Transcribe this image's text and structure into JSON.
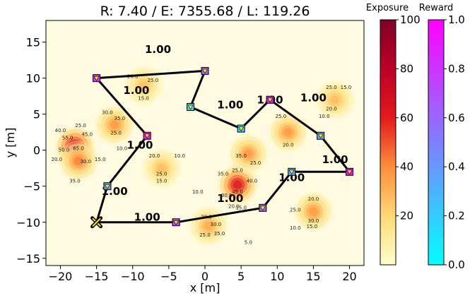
{
  "chart_data": {
    "type": "scatter",
    "title": "R: 7.40 / E: 7355.68 / L: 119.26",
    "xlabel": "x [m]",
    "ylabel": "y [m]",
    "xlim": [
      -22,
      22
    ],
    "ylim": [
      -16,
      18
    ],
    "xticks": [
      -20,
      -15,
      -10,
      -5,
      0,
      5,
      10,
      15,
      20
    ],
    "yticks": [
      -15,
      -10,
      -5,
      0,
      5,
      10,
      15
    ],
    "grid": false,
    "exposure_sources": [
      {
        "x": -18,
        "y": 0.5,
        "peak": 75
      },
      {
        "x": -17.5,
        "y": -1.5,
        "peak": 45
      },
      {
        "x": -12.5,
        "y": 3.5,
        "peak": 40
      },
      {
        "x": -8.5,
        "y": 9,
        "peak": 28
      },
      {
        "x": -6,
        "y": -2.5,
        "peak": 30
      },
      {
        "x": 4.5,
        "y": -4.8,
        "peak": 70
      },
      {
        "x": 6,
        "y": -0.5,
        "peak": 40
      },
      {
        "x": 11.5,
        "y": 2.5,
        "peak": 40
      },
      {
        "x": 18,
        "y": 7,
        "peak": 30
      },
      {
        "x": 15,
        "y": -8.5,
        "peak": 40
      },
      {
        "x": 0.5,
        "y": -10.5,
        "peak": 35
      }
    ],
    "contour_labels": [
      {
        "text": "20.0",
        "x": -10,
        "y": 10
      },
      {
        "text": "25.0",
        "x": -7.2,
        "y": 9.5
      },
      {
        "text": "15.0",
        "x": -8.5,
        "y": 7
      },
      {
        "text": "30.0",
        "x": -13.5,
        "y": 5
      },
      {
        "text": "35.0",
        "x": -11.8,
        "y": 4.2
      },
      {
        "text": "25.0",
        "x": -12.3,
        "y": 2.2
      },
      {
        "text": "25.0",
        "x": -17.2,
        "y": 3.2
      },
      {
        "text": "40.0",
        "x": -20,
        "y": 2.5
      },
      {
        "text": "45.0",
        "x": -16.3,
        "y": 2
      },
      {
        "text": "55.0",
        "x": -19,
        "y": 1.5
      },
      {
        "text": "65.0",
        "x": -17.5,
        "y": 0
      },
      {
        "text": "50.0",
        "x": -19.5,
        "y": -0.2
      },
      {
        "text": "15.0",
        "x": -14.5,
        "y": -1.5
      },
      {
        "text": "30.0",
        "x": -16.5,
        "y": -1.8
      },
      {
        "text": "20.0",
        "x": -20.5,
        "y": -1.5
      },
      {
        "text": "35.0",
        "x": -18,
        "y": -4.5
      },
      {
        "text": "10.0",
        "x": -11.5,
        "y": 0
      },
      {
        "text": "20.0",
        "x": -7,
        "y": -1
      },
      {
        "text": "10.0",
        "x": -3.5,
        "y": -1
      },
      {
        "text": "25.0",
        "x": -6,
        "y": -3.5
      },
      {
        "text": "15.0",
        "x": -6,
        "y": -4.5
      },
      {
        "text": "10.0",
        "x": -1,
        "y": -6
      },
      {
        "text": "35.0",
        "x": 2.5,
        "y": -3.5
      },
      {
        "text": "25.0",
        "x": 4.5,
        "y": -3
      },
      {
        "text": "40.0",
        "x": 6.5,
        "y": -4.5
      },
      {
        "text": "45.0",
        "x": 4.5,
        "y": -6
      },
      {
        "text": "30.0",
        "x": 3,
        "y": -6.5
      },
      {
        "text": "20.0",
        "x": 4,
        "y": -8
      },
      {
        "text": "15.0",
        "x": 5,
        "y": -8.2
      },
      {
        "text": "35.0",
        "x": 5,
        "y": -1
      },
      {
        "text": "25.0",
        "x": 7,
        "y": -2
      },
      {
        "text": "20.0",
        "x": 0.2,
        "y": -9.5
      },
      {
        "text": "30.0",
        "x": 1.5,
        "y": -10.5
      },
      {
        "text": "25.0",
        "x": 0,
        "y": -12
      },
      {
        "text": "35.0",
        "x": 2,
        "y": -11.8
      },
      {
        "text": "5.0",
        "x": 6,
        "y": -13
      },
      {
        "text": "25.0",
        "x": 10.5,
        "y": 4.5
      },
      {
        "text": "20.0",
        "x": 11.5,
        "y": 0.5
      },
      {
        "text": "25.0",
        "x": 17.5,
        "y": 8.5
      },
      {
        "text": "15.0",
        "x": 19.5,
        "y": 8.5
      },
      {
        "text": "20.0",
        "x": 17.5,
        "y": 5.5
      },
      {
        "text": "10.0",
        "x": 16.5,
        "y": 4.5
      },
      {
        "text": "20.0",
        "x": 15,
        "y": -7
      },
      {
        "text": "25.0",
        "x": 12.5,
        "y": -8.5
      },
      {
        "text": "30.0",
        "x": 15,
        "y": -10
      },
      {
        "text": "10.0",
        "x": 12.5,
        "y": -11
      },
      {
        "text": "15.0",
        "x": 14.8,
        "y": -10.8
      }
    ],
    "path": [
      {
        "x": -15,
        "y": -10
      },
      {
        "x": -13.5,
        "y": -5
      },
      {
        "x": -8,
        "y": 2
      },
      {
        "x": -15,
        "y": 10
      },
      {
        "x": 0,
        "y": 11
      },
      {
        "x": -2,
        "y": 6
      },
      {
        "x": 5,
        "y": 3
      },
      {
        "x": 9,
        "y": 7
      },
      {
        "x": 16,
        "y": 2
      },
      {
        "x": 20,
        "y": -3
      },
      {
        "x": 12,
        "y": -3
      },
      {
        "x": 8,
        "y": -8
      },
      {
        "x": -4,
        "y": -10
      },
      {
        "x": -15,
        "y": -10
      }
    ],
    "segment_labels": [
      {
        "text": "1.00",
        "x": -12.5,
        "y": -6.2
      },
      {
        "text": "1.00",
        "x": -9,
        "y": 0.2
      },
      {
        "text": "1.00",
        "x": -9.5,
        "y": 7.8
      },
      {
        "text": "1.00",
        "x": -6.5,
        "y": 13.5
      },
      {
        "text": "1.00",
        "x": 3.5,
        "y": 5.8
      },
      {
        "text": "1.00",
        "x": 9,
        "y": 6.5
      },
      {
        "text": "1.00",
        "x": 15,
        "y": 6.8
      },
      {
        "text": "1.00",
        "x": 18,
        "y": -1.8
      },
      {
        "text": "1.00",
        "x": 12,
        "y": -4.3
      },
      {
        "text": "1.00",
        "x": 3.5,
        "y": -7.2
      },
      {
        "text": "1.00",
        "x": -8,
        "y": -9.8
      }
    ],
    "waypoints": [
      {
        "x": -13.5,
        "y": -5,
        "reward": 0.4
      },
      {
        "x": -8,
        "y": 2,
        "reward": 0.9
      },
      {
        "x": -15,
        "y": 10,
        "reward": 0.8
      },
      {
        "x": 0,
        "y": 11,
        "reward": 0.6
      },
      {
        "x": -2,
        "y": 6,
        "reward": 0.15
      },
      {
        "x": 5,
        "y": 3,
        "reward": 0.2
      },
      {
        "x": 9,
        "y": 7,
        "reward": 0.9
      },
      {
        "x": 16,
        "y": 2,
        "reward": 0.35
      },
      {
        "x": 20,
        "y": -3,
        "reward": 0.95
      },
      {
        "x": 12,
        "y": -3,
        "reward": 0.3
      },
      {
        "x": 8,
        "y": -8,
        "reward": 0.6
      },
      {
        "x": -4,
        "y": -10,
        "reward": 0.75
      }
    ],
    "start": {
      "x": -15,
      "y": -10
    },
    "colorbars": [
      {
        "title": "Exposure",
        "min": 0,
        "max": 100,
        "ticks": [
          20,
          40,
          60,
          80,
          100
        ]
      },
      {
        "title": "Reward",
        "min": 0,
        "max": 1,
        "ticks": [
          "0.0",
          "0.2",
          "0.4",
          "0.6",
          "0.8",
          "1.0"
        ]
      }
    ]
  }
}
